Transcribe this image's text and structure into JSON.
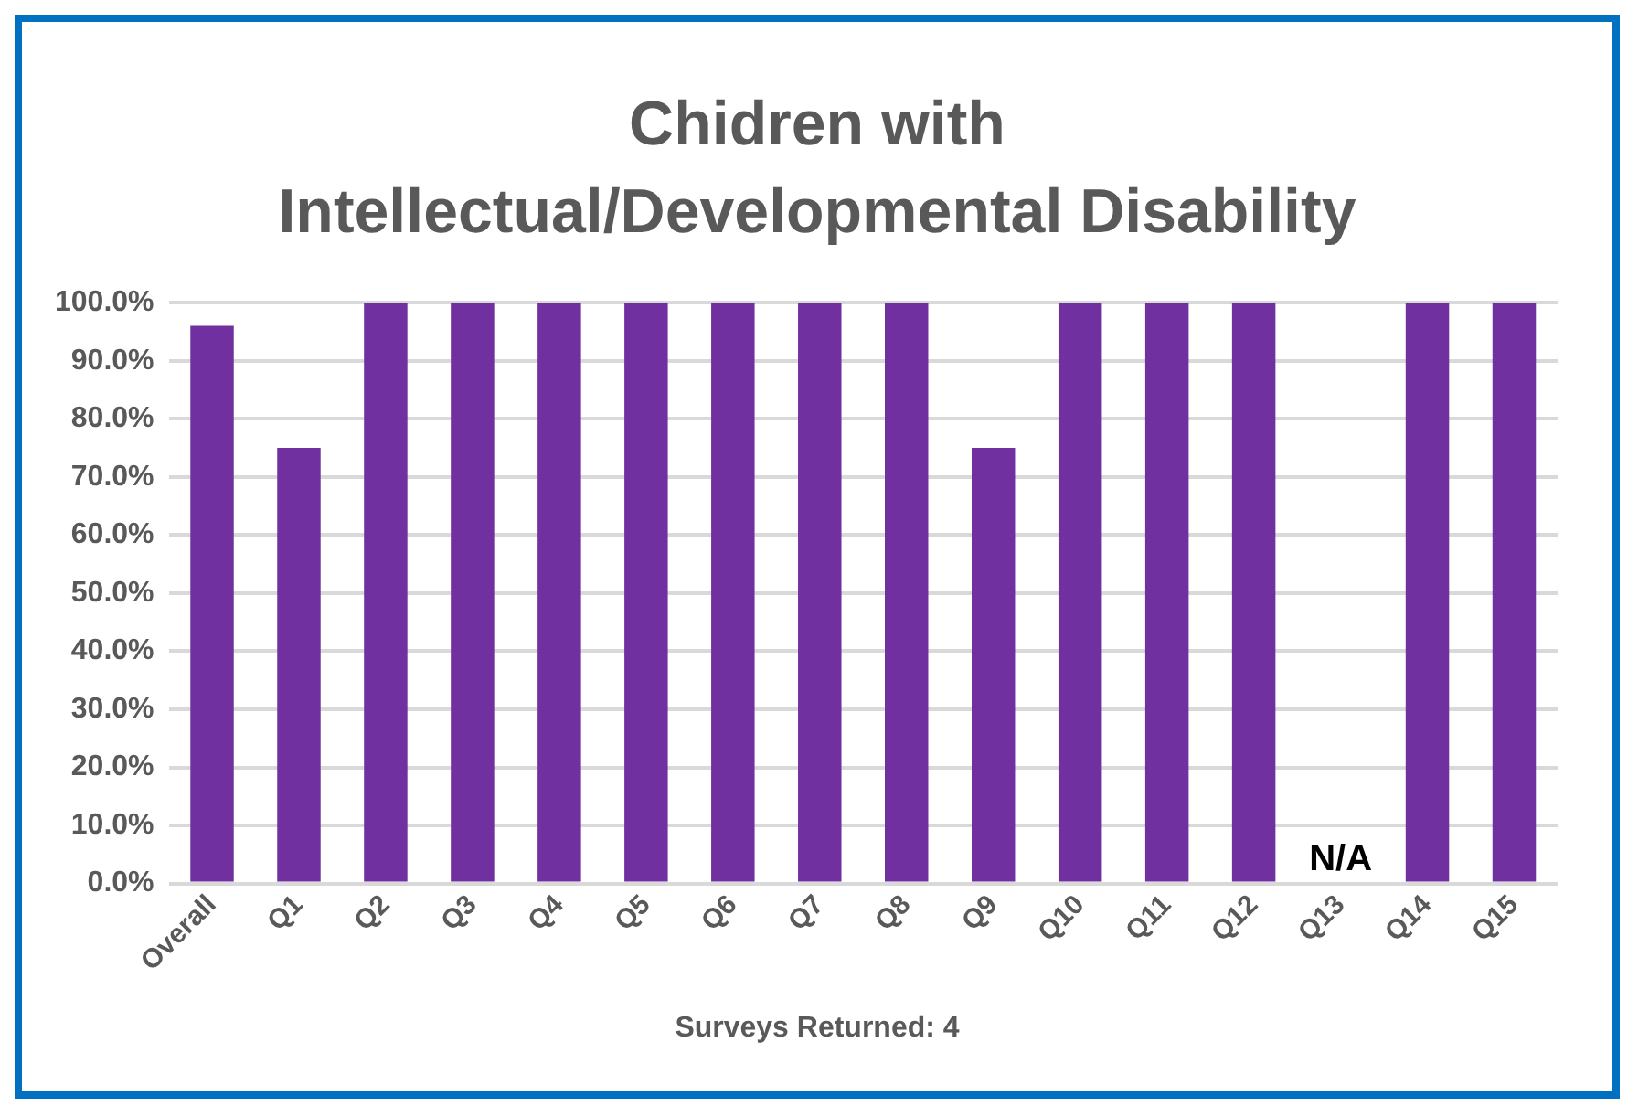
{
  "chart_data": {
    "type": "bar",
    "title": "Chidren with Intellectual/Developmental Disability",
    "categories": [
      "Overall",
      "Q1",
      "Q2",
      "Q3",
      "Q4",
      "Q5",
      "Q6",
      "Q7",
      "Q8",
      "Q9",
      "Q10",
      "Q11",
      "Q12",
      "Q13",
      "Q14",
      "Q15"
    ],
    "values": [
      96,
      75,
      100,
      100,
      100,
      100,
      100,
      100,
      100,
      75,
      100,
      100,
      100,
      null,
      100,
      100
    ],
    "color": "#7030a0",
    "ylim": [
      0,
      100
    ],
    "yticks": [
      {
        "value": 0,
        "label": "0.0%"
      },
      {
        "value": 10,
        "label": "10.0%"
      },
      {
        "value": 20,
        "label": "20.0%"
      },
      {
        "value": 30,
        "label": "30.0%"
      },
      {
        "value": 40,
        "label": "40.0%"
      },
      {
        "value": 50,
        "label": "50.0%"
      },
      {
        "value": 60,
        "label": "60.0%"
      },
      {
        "value": 70,
        "label": "70.0%"
      },
      {
        "value": 80,
        "label": "80.0%"
      },
      {
        "value": 90,
        "label": "90.0%"
      },
      {
        "value": 100,
        "label": "100.0%"
      }
    ],
    "grid": "y",
    "legend": false,
    "value_labels": [
      null,
      null,
      null,
      null,
      null,
      null,
      null,
      null,
      null,
      null,
      null,
      null,
      null,
      "N/A",
      null,
      null
    ],
    "annotations": [
      "Surveys Returned: 4"
    ]
  }
}
